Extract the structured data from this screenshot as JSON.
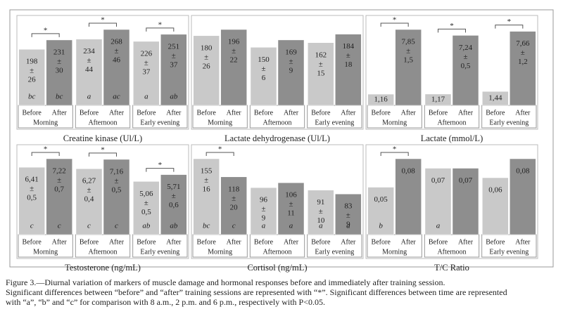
{
  "plus_minus": "±",
  "caption": [
    "Figure 3.—Diurnal variation of markers of muscle damage and hormonal responses before and immediately after training session.",
    "Significant differences between “before” and “after” training sessions are represented with “*”. Significant differences between time are represented",
    "with “a”, “b” and “c” for comparison with 8 a.m., 2 p.m. and 6 p.m., respectively with P<0.05."
  ],
  "chart_data": [
    {
      "type": "bar",
      "xlabel": "Creatine kinase (Ul/L)",
      "colors": [
        "#c9c9c9",
        "#8e8e8e"
      ],
      "groups": [
        "Morning",
        "Afternoon",
        "Early evening"
      ],
      "significance": [
        "*",
        "*",
        "*"
      ],
      "categories": [
        "Before",
        "After",
        "Before",
        "After",
        "Before",
        "After"
      ],
      "values": [
        198,
        231,
        234,
        268,
        226,
        251
      ],
      "errors": [
        26,
        30,
        44,
        46,
        37,
        37
      ],
      "letters": [
        "bc",
        "bc",
        "a",
        "ac",
        "a",
        "ab"
      ]
    },
    {
      "type": "bar",
      "xlabel": "Lactate dehydrogenase (Ul/L)",
      "colors": [
        "#c9c9c9",
        "#8e8e8e"
      ],
      "groups": [
        "Morning",
        "Afternoon",
        "Early evening"
      ],
      "significance": [
        null,
        null,
        null
      ],
      "categories": [
        "Before",
        "After",
        "Before",
        "After",
        "Before",
        "After"
      ],
      "values": [
        180,
        196,
        150,
        169,
        162,
        184
      ],
      "errors": [
        26,
        22,
        6,
        9,
        15,
        18
      ],
      "letters": [
        null,
        null,
        null,
        null,
        null,
        null
      ]
    },
    {
      "type": "bar",
      "xlabel": "Lactate (mmol/L)",
      "colors": [
        "#c9c9c9",
        "#8e8e8e"
      ],
      "groups": [
        "Morning",
        "Afternoon",
        "Early evening"
      ],
      "significance": [
        "*",
        "*",
        "*"
      ],
      "categories": [
        "Before",
        "After",
        "Before",
        "After",
        "Before",
        "After"
      ],
      "values": [
        1.16,
        7.85,
        1.17,
        7.24,
        1.44,
        7.66
      ],
      "value_labels": [
        "1,16",
        "7,85",
        "1,17",
        "7,24",
        "1,44",
        "7,66"
      ],
      "errors": [
        null,
        1.5,
        null,
        0.5,
        null,
        1.2
      ],
      "error_labels": [
        null,
        "1,5",
        null,
        "0,5",
        null,
        "1,2"
      ],
      "letters": [
        null,
        null,
        null,
        null,
        null,
        null
      ]
    },
    {
      "type": "bar",
      "xlabel": "Testosterone (ng/mL)",
      "colors": [
        "#c9c9c9",
        "#8e8e8e"
      ],
      "groups": [
        "Morning",
        "Afternoon",
        "Early evening"
      ],
      "significance": [
        "*",
        "*",
        "*"
      ],
      "categories": [
        "Before",
        "After",
        "Before",
        "After",
        "Before",
        "After"
      ],
      "values": [
        6.41,
        7.22,
        6.27,
        7.16,
        5.06,
        5.71
      ],
      "value_labels": [
        "6,41",
        "7,22",
        "6,27",
        "7,16",
        "5,06",
        "5,71"
      ],
      "errors": [
        0.5,
        0.7,
        0.4,
        0.5,
        0.5,
        0.6
      ],
      "error_labels": [
        "0,5",
        "0,7",
        "0,4",
        "0,5",
        "0,5",
        "0,6"
      ],
      "letters": [
        "c",
        "c",
        "c",
        "c",
        "ab",
        "ab"
      ]
    },
    {
      "type": "bar",
      "xlabel": "Cortisol (ng/mL)",
      "colors": [
        "#c9c9c9",
        "#8e8e8e"
      ],
      "groups": [
        "Morning",
        "Afternoon",
        "Early evening"
      ],
      "significance": [
        "*",
        null,
        null
      ],
      "categories": [
        "Before",
        "After",
        "Before",
        "After",
        "Before",
        "After"
      ],
      "values": [
        155,
        118,
        96,
        106,
        91,
        83
      ],
      "errors": [
        16,
        20,
        9,
        11,
        10,
        9
      ],
      "letters": [
        "bc",
        "c",
        "a",
        "a",
        "a",
        "a"
      ]
    },
    {
      "type": "bar",
      "xlabel": "T/C Ratio",
      "colors": [
        "#c9c9c9",
        "#8e8e8e"
      ],
      "groups": [
        "Morning",
        "Afternoon",
        "Early evening"
      ],
      "significance": [
        "*",
        null,
        null
      ],
      "categories": [
        "Before",
        "After",
        "Before",
        "After",
        "Before",
        "After"
      ],
      "values": [
        0.05,
        0.08,
        0.07,
        0.07,
        0.06,
        0.08
      ],
      "value_labels": [
        "0,05",
        "0,08",
        "0,07",
        "0,07",
        "0,06",
        "0,08"
      ],
      "errors": [
        null,
        null,
        null,
        null,
        null,
        null
      ],
      "letters": [
        "b",
        null,
        "a",
        null,
        null,
        null
      ]
    }
  ]
}
